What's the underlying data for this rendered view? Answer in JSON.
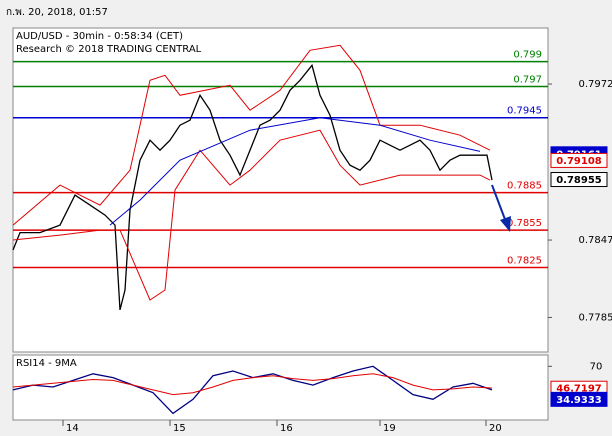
{
  "header": "ก.พ. 20, 2018, 01:57",
  "chart_data": [
    {
      "type": "line",
      "title": "AUD/USD - 30min - 0:58:34 (CET)",
      "subtitle": "Research © 2018 TRADING CENTRAL",
      "xlim": [
        0,
        535
      ],
      "xticks": [
        {
          "value": 50,
          "label": "14"
        },
        {
          "value": 157,
          "label": "15"
        },
        {
          "value": 264,
          "label": "16"
        },
        {
          "value": 367,
          "label": "19"
        },
        {
          "value": 473,
          "label": "20"
        }
      ],
      "ylim": [
        0.77573,
        0.80169
      ],
      "yticks": [
        0.7972,
        0.7847,
        0.7785
      ],
      "levels": [
        {
          "value": 0.799,
          "color": "#008000"
        },
        {
          "value": 0.797,
          "color": "#008000"
        },
        {
          "value": 0.7945,
          "color": "#0000cc"
        },
        {
          "value": 0.7885,
          "color": "#e00000"
        },
        {
          "value": 0.7855,
          "color": "#e00000"
        },
        {
          "value": 0.7825,
          "color": "#e00000"
        }
      ],
      "price_tags": [
        {
          "value": 0.79161,
          "color": "#0000cc",
          "filled": true
        },
        {
          "value": 0.79108,
          "color": "#e00000",
          "filled": false
        },
        {
          "value": 0.78955,
          "color": "#000000",
          "filled": false
        }
      ],
      "series": [
        {
          "color": "#000000",
          "x": [
            0,
            7,
            27,
            47,
            62,
            77,
            92,
            102,
            107,
            112,
            117,
            127,
            137,
            147,
            157,
            167,
            177,
            187,
            197,
            207,
            217,
            227,
            237,
            247,
            257,
            267,
            277,
            287,
            299,
            307,
            317,
            327,
            337,
            347,
            357,
            367,
            377,
            387,
            397,
            407,
            417,
            427,
            437,
            447,
            457,
            467,
            474,
            479
          ],
          "values": [
            0.7839,
            0.7853,
            0.7853,
            0.7859,
            0.7883,
            0.7875,
            0.7867,
            0.7859,
            0.7791,
            0.7807,
            0.7871,
            0.7911,
            0.7927,
            0.7919,
            0.7927,
            0.7939,
            0.7943,
            0.7963,
            0.7951,
            0.7927,
            0.7915,
            0.7899,
            0.7919,
            0.7939,
            0.7943,
            0.7951,
            0.7967,
            0.7975,
            0.7987,
            0.7963,
            0.7947,
            0.7919,
            0.7907,
            0.7903,
            0.7911,
            0.7927,
            0.7923,
            0.7919,
            0.7923,
            0.7927,
            0.7919,
            0.7903,
            0.7911,
            0.7915,
            0.7915,
            0.7915,
            0.7915,
            0.7895
          ]
        },
        {
          "color": "#e00000",
          "x": [
            0,
            47,
            87,
            117,
            137,
            152,
            167,
            217,
            237,
            267,
            297,
            327,
            347,
            367,
            407,
            447,
            477
          ],
          "values": [
            0.7859,
            0.7891,
            0.7875,
            0.7903,
            0.7975,
            0.7979,
            0.7963,
            0.7971,
            0.7951,
            0.7967,
            0.7999,
            0.8003,
            0.7983,
            0.7939,
            0.7939,
            0.7931,
            0.7919
          ]
        },
        {
          "color": "#e00000",
          "x": [
            0,
            47,
            87,
            107,
            137,
            152,
            162,
            187,
            217,
            237,
            267,
            307,
            327,
            347,
            387,
            427,
            467,
            477
          ],
          "values": [
            0.7847,
            0.7851,
            0.7855,
            0.7855,
            0.7799,
            0.7807,
            0.7887,
            0.7919,
            0.7891,
            0.7903,
            0.7927,
            0.7935,
            0.7907,
            0.7891,
            0.7899,
            0.7899,
            0.7899,
            0.7895
          ]
        },
        {
          "color": "#0000cc",
          "x": [
            97,
            127,
            167,
            237,
            307,
            367,
            417,
            467
          ],
          "values": [
            0.7859,
            0.7879,
            0.7911,
            0.7935,
            0.7945,
            0.7939,
            0.7927,
            0.7918
          ]
        }
      ]
    },
    {
      "type": "line",
      "title": "RSI14 - 9MA",
      "xlim": [
        0,
        535
      ],
      "ylim": [
        13,
        82
      ],
      "yticks": [
        70
      ],
      "price_tags": [
        {
          "value": 46.7197,
          "color": "#e00000",
          "filled": false
        },
        {
          "value": 34.9333,
          "color": "#0000cc",
          "filled": true
        }
      ],
      "series": [
        {
          "color": "#000080",
          "x": [
            0,
            20,
            40,
            60,
            80,
            100,
            120,
            140,
            160,
            180,
            200,
            220,
            240,
            260,
            280,
            300,
            320,
            340,
            360,
            380,
            400,
            420,
            440,
            460,
            479
          ],
          "values": [
            45,
            50,
            48,
            55,
            62,
            58,
            50,
            42,
            20,
            35,
            60,
            65,
            58,
            62,
            55,
            50,
            58,
            65,
            70,
            55,
            40,
            35,
            48,
            52,
            45
          ]
        },
        {
          "color": "#e00000",
          "x": [
            0,
            20,
            40,
            60,
            80,
            100,
            120,
            140,
            160,
            180,
            200,
            220,
            240,
            260,
            280,
            300,
            320,
            340,
            360,
            380,
            400,
            420,
            440,
            460,
            479
          ],
          "values": [
            48,
            50,
            52,
            54,
            56,
            55,
            50,
            45,
            40,
            42,
            48,
            55,
            58,
            60,
            57,
            55,
            57,
            60,
            62,
            58,
            50,
            45,
            46,
            48,
            47
          ]
        }
      ]
    }
  ]
}
